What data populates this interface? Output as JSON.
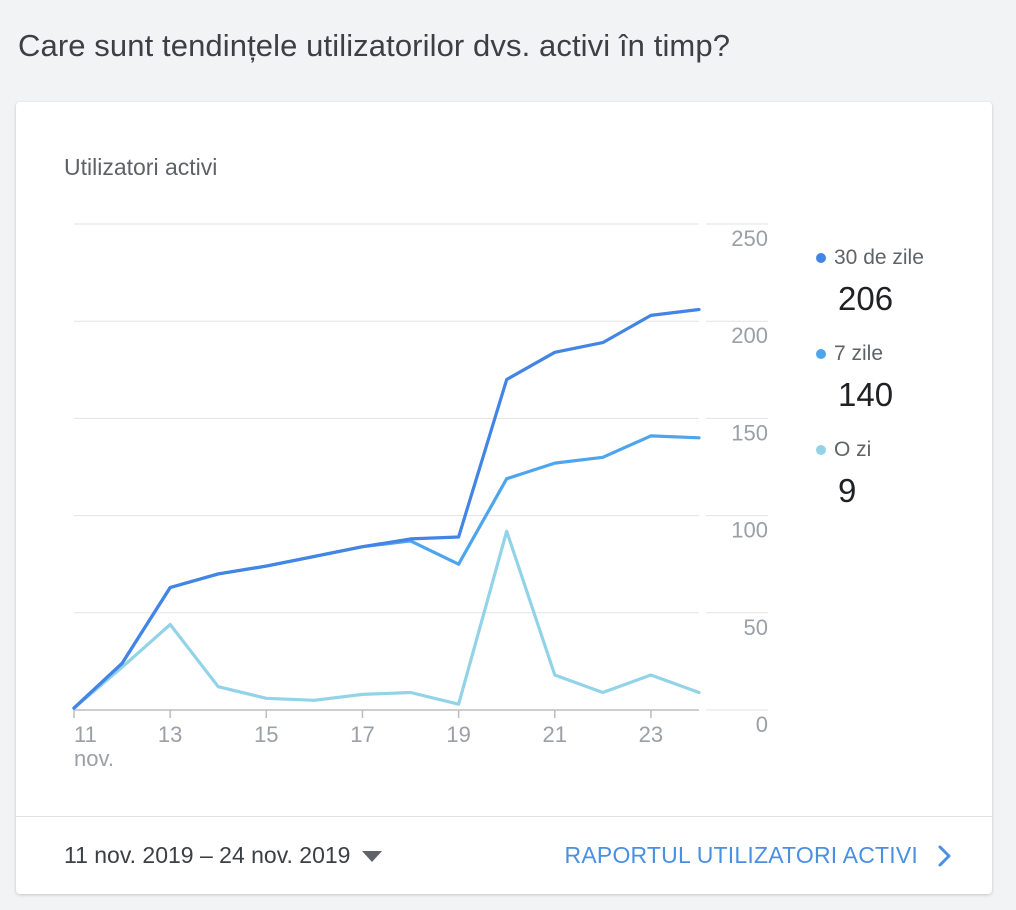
{
  "heading": "Care sunt tendințele utilizatorilor dvs. activi în timp?",
  "card": {
    "title": "Utilizatori activi",
    "date_range": "11 nov. 2019 – 24 nov. 2019",
    "report_link": "RAPORTUL UTILIZATORI ACTIVI",
    "date_dropdown_icon": "caret-down-icon",
    "report_link_icon": "chevron-right-icon"
  },
  "legend": [
    {
      "label": "30 de zile",
      "value": "206",
      "color": "#4285e4"
    },
    {
      "label": "7 zile",
      "value": "140",
      "color": "#4ea5ed"
    },
    {
      "label": "O zi",
      "value": "9",
      "color": "#92d3e8"
    }
  ],
  "chart_data": {
    "type": "line",
    "x": [
      11,
      12,
      13,
      14,
      15,
      16,
      17,
      18,
      19,
      20,
      21,
      22,
      23,
      24
    ],
    "x_ticks": [
      {
        "value": 11,
        "label": "11",
        "sublabel": "nov."
      },
      {
        "value": 13,
        "label": "13"
      },
      {
        "value": 15,
        "label": "15"
      },
      {
        "value": 17,
        "label": "17"
      },
      {
        "value": 19,
        "label": "19"
      },
      {
        "value": 21,
        "label": "21"
      },
      {
        "value": 23,
        "label": "23"
      }
    ],
    "y_ticks": [
      "0",
      "50",
      "100",
      "150",
      "200",
      "250"
    ],
    "ylim": [
      0,
      250
    ],
    "grid": true,
    "legend_position": "right",
    "series": [
      {
        "name": "30 de zile",
        "color": "#4285e4",
        "values": [
          1,
          24,
          63,
          70,
          74,
          79,
          84,
          88,
          89,
          170,
          184,
          189,
          203,
          206
        ]
      },
      {
        "name": "7 zile",
        "color": "#4ea5ed",
        "values": [
          1,
          24,
          63,
          70,
          74,
          79,
          84,
          87,
          75,
          119,
          127,
          130,
          141,
          140
        ]
      },
      {
        "name": "O zi",
        "color": "#92d3e8",
        "values": [
          1,
          22,
          44,
          12,
          6,
          5,
          8,
          9,
          3,
          92,
          18,
          9,
          18,
          9
        ]
      }
    ]
  }
}
